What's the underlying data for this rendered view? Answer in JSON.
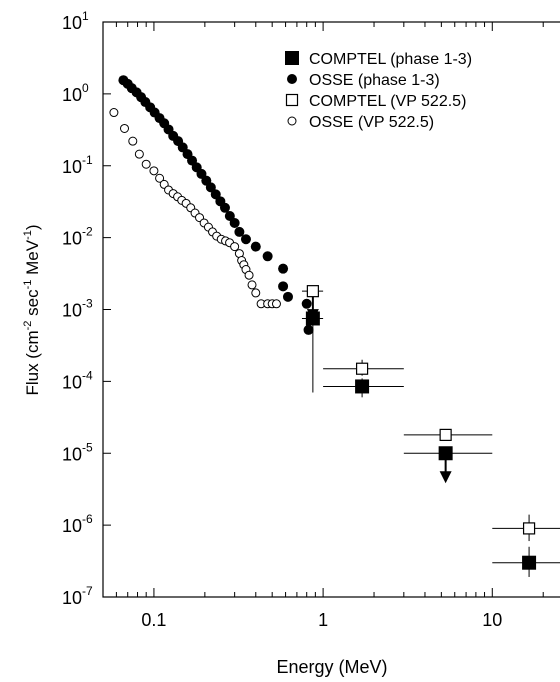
{
  "chart_data": {
    "type": "scatter",
    "title": "",
    "xlabel": "Energy (MeV)",
    "ylabel": {
      "pre": "Flux (cm",
      "exp1": "-2",
      "mid": " sec",
      "exp2": "-1",
      "mid2": " MeV",
      "exp3": "-1",
      "post": ")"
    },
    "x_scale": "log",
    "y_scale": "log",
    "xlim": [
      0.05,
      30
    ],
    "ylim": [
      1e-07,
      10
    ],
    "grid": false,
    "legend_position": "top-right",
    "x_tick_labels": [
      {
        "value": 0.1,
        "label": "0.1"
      },
      {
        "value": 1,
        "label": "1"
      },
      {
        "value": 10,
        "label": "10"
      }
    ],
    "y_tick_labels": [
      {
        "value": 10,
        "base": "10",
        "exp": "1"
      },
      {
        "value": 1,
        "base": "10",
        "exp": "0"
      },
      {
        "value": 0.1,
        "base": "10",
        "exp": "-1"
      },
      {
        "value": 0.01,
        "base": "10",
        "exp": "-2"
      },
      {
        "value": 0.001,
        "base": "10",
        "exp": "-3"
      },
      {
        "value": 0.0001,
        "base": "10",
        "exp": "-4"
      },
      {
        "value": 1e-05,
        "base": "10",
        "exp": "-5"
      },
      {
        "value": 1e-06,
        "base": "10",
        "exp": "-6"
      },
      {
        "value": 1e-07,
        "base": "10",
        "exp": "-7"
      }
    ],
    "series": [
      {
        "name": "COMPTEL (phase 1-3)",
        "marker": "filled-square",
        "points": [
          {
            "x": 0.87,
            "y": 0.00075,
            "xerr": [
              0.75,
              1.0
            ],
            "yerr": [
              7e-05,
              0.0012
            ],
            "upper_limit": false
          },
          {
            "x": 1.7,
            "y": 8.5e-05,
            "xerr": [
              1.0,
              3.0
            ],
            "yerr": [
              6e-05,
              0.00011
            ],
            "upper_limit": false
          },
          {
            "x": 5.3,
            "y": 1e-05,
            "xerr": [
              3.0,
              10.0
            ],
            "yerr": null,
            "upper_limit": true
          },
          {
            "x": 16.5,
            "y": 3e-07,
            "xerr": [
              10.0,
              30.0
            ],
            "yerr": [
              1.9e-07,
              5e-07
            ],
            "upper_limit": false
          }
        ]
      },
      {
        "name": "OSSE (phase 1-3)",
        "marker": "filled-circle",
        "points": [
          {
            "x": 0.066,
            "y": 1.55
          },
          {
            "x": 0.07,
            "y": 1.38
          },
          {
            "x": 0.074,
            "y": 1.2
          },
          {
            "x": 0.079,
            "y": 1.05
          },
          {
            "x": 0.084,
            "y": 0.9
          },
          {
            "x": 0.089,
            "y": 0.77
          },
          {
            "x": 0.095,
            "y": 0.65
          },
          {
            "x": 0.101,
            "y": 0.55
          },
          {
            "x": 0.108,
            "y": 0.46
          },
          {
            "x": 0.115,
            "y": 0.39
          },
          {
            "x": 0.122,
            "y": 0.32
          },
          {
            "x": 0.13,
            "y": 0.26
          },
          {
            "x": 0.139,
            "y": 0.22
          },
          {
            "x": 0.148,
            "y": 0.18
          },
          {
            "x": 0.158,
            "y": 0.145
          },
          {
            "x": 0.168,
            "y": 0.118
          },
          {
            "x": 0.179,
            "y": 0.095
          },
          {
            "x": 0.191,
            "y": 0.077
          },
          {
            "x": 0.204,
            "y": 0.062
          },
          {
            "x": 0.217,
            "y": 0.05
          },
          {
            "x": 0.232,
            "y": 0.04
          },
          {
            "x": 0.247,
            "y": 0.032
          },
          {
            "x": 0.263,
            "y": 0.026
          },
          {
            "x": 0.281,
            "y": 0.02
          },
          {
            "x": 0.3,
            "y": 0.016
          },
          {
            "x": 0.32,
            "y": 0.012
          },
          {
            "x": 0.35,
            "y": 0.0095
          },
          {
            "x": 0.4,
            "y": 0.0075
          },
          {
            "x": 0.47,
            "y": 0.0055
          },
          {
            "x": 0.58,
            "y": 0.0037
          },
          {
            "x": 0.58,
            "y": 0.0021
          },
          {
            "x": 0.62,
            "y": 0.0015
          },
          {
            "x": 0.8,
            "y": 0.0012
          },
          {
            "x": 0.82,
            "y": 0.00052
          }
        ]
      },
      {
        "name": "COMPTEL (VP 522.5)",
        "marker": "open-square",
        "points": [
          {
            "x": 0.87,
            "y": 0.0018,
            "xerr": [
              0.75,
              1.0
            ],
            "yerr": null,
            "upper_limit": true
          },
          {
            "x": 1.7,
            "y": 0.00015,
            "xerr": [
              1.0,
              3.0
            ],
            "yerr": [
              0.00012,
              0.0002
            ],
            "upper_limit": false
          },
          {
            "x": 5.3,
            "y": 1.8e-05,
            "xerr": [
              3.0,
              10.0
            ],
            "yerr": null,
            "upper_limit": false
          },
          {
            "x": 16.5,
            "y": 9e-07,
            "xerr": [
              10.0,
              30.0
            ],
            "yerr": [
              6e-07,
              1.4e-06
            ],
            "upper_limit": false
          }
        ]
      },
      {
        "name": "OSSE (VP 522.5)",
        "marker": "open-circle",
        "points": [
          {
            "x": 0.058,
            "y": 0.55
          },
          {
            "x": 0.067,
            "y": 0.33
          },
          {
            "x": 0.075,
            "y": 0.22
          },
          {
            "x": 0.082,
            "y": 0.145
          },
          {
            "x": 0.09,
            "y": 0.105
          },
          {
            "x": 0.1,
            "y": 0.085
          },
          {
            "x": 0.108,
            "y": 0.067
          },
          {
            "x": 0.115,
            "y": 0.055
          },
          {
            "x": 0.122,
            "y": 0.046
          },
          {
            "x": 0.13,
            "y": 0.041
          },
          {
            "x": 0.138,
            "y": 0.037
          },
          {
            "x": 0.146,
            "y": 0.033
          },
          {
            "x": 0.155,
            "y": 0.03
          },
          {
            "x": 0.165,
            "y": 0.026
          },
          {
            "x": 0.175,
            "y": 0.022
          },
          {
            "x": 0.186,
            "y": 0.019
          },
          {
            "x": 0.198,
            "y": 0.016
          },
          {
            "x": 0.21,
            "y": 0.014
          },
          {
            "x": 0.222,
            "y": 0.012
          },
          {
            "x": 0.235,
            "y": 0.0105
          },
          {
            "x": 0.25,
            "y": 0.0095
          },
          {
            "x": 0.265,
            "y": 0.009
          },
          {
            "x": 0.28,
            "y": 0.0085
          },
          {
            "x": 0.3,
            "y": 0.0075
          },
          {
            "x": 0.32,
            "y": 0.006
          },
          {
            "x": 0.33,
            "y": 0.0048
          },
          {
            "x": 0.34,
            "y": 0.0042
          },
          {
            "x": 0.35,
            "y": 0.0036
          },
          {
            "x": 0.365,
            "y": 0.003
          },
          {
            "x": 0.38,
            "y": 0.0022
          },
          {
            "x": 0.4,
            "y": 0.0017
          },
          {
            "x": 0.43,
            "y": 0.0012
          },
          {
            "x": 0.47,
            "y": 0.0012
          },
          {
            "x": 0.5,
            "y": 0.0012
          },
          {
            "x": 0.53,
            "y": 0.0012
          }
        ]
      }
    ]
  }
}
